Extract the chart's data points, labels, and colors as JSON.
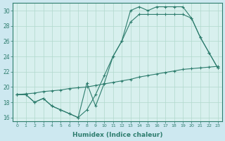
{
  "xlabel": "Humidex (Indice chaleur)",
  "bg_color": "#cde8f0",
  "plot_bg_color": "#d8f0ee",
  "line_color": "#2e7d6e",
  "grid_color": "#b0d8cc",
  "xlim": [
    -0.5,
    23.5
  ],
  "ylim": [
    15.5,
    31.0
  ],
  "yticks": [
    16,
    18,
    20,
    22,
    24,
    26,
    28,
    30
  ],
  "xticks": [
    0,
    1,
    2,
    3,
    4,
    5,
    6,
    7,
    8,
    9,
    10,
    11,
    12,
    13,
    14,
    15,
    16,
    17,
    18,
    19,
    20,
    21,
    22,
    23
  ],
  "line_straight_x": [
    0,
    1,
    2,
    3,
    4,
    5,
    6,
    7,
    8,
    9,
    10,
    11,
    12,
    13,
    14,
    15,
    16,
    17,
    18,
    19,
    20,
    21,
    22,
    23
  ],
  "line_straight_y": [
    19.0,
    19.1,
    19.2,
    19.4,
    19.5,
    19.6,
    19.8,
    19.9,
    20.0,
    20.2,
    20.4,
    20.6,
    20.8,
    21.0,
    21.3,
    21.5,
    21.7,
    21.9,
    22.1,
    22.3,
    22.4,
    22.5,
    22.6,
    22.7
  ],
  "line_jagged_x": [
    0,
    1,
    2,
    3,
    4,
    5,
    6,
    7,
    8,
    9,
    10,
    11,
    12,
    13,
    14,
    15,
    16,
    17,
    18,
    19,
    20,
    21,
    22,
    23
  ],
  "line_jagged_y": [
    19.0,
    19.0,
    18.0,
    18.5,
    17.5,
    17.0,
    16.5,
    16.0,
    20.5,
    17.5,
    20.5,
    24.0,
    26.0,
    30.0,
    30.5,
    30.0,
    30.5,
    30.5,
    30.5,
    30.5,
    29.0,
    26.5,
    24.5,
    22.5
  ],
  "line_peak_x": [
    0,
    1,
    2,
    3,
    4,
    5,
    6,
    7,
    8,
    9,
    10,
    11,
    12,
    13,
    14,
    15,
    16,
    17,
    18,
    19,
    20,
    21,
    22,
    23
  ],
  "line_peak_y": [
    19.0,
    19.0,
    18.0,
    18.5,
    17.5,
    17.0,
    16.5,
    16.0,
    17.0,
    19.0,
    21.5,
    24.0,
    26.0,
    28.5,
    29.5,
    29.5,
    29.5,
    29.5,
    29.5,
    29.5,
    29.0,
    26.5,
    24.5,
    22.5
  ]
}
